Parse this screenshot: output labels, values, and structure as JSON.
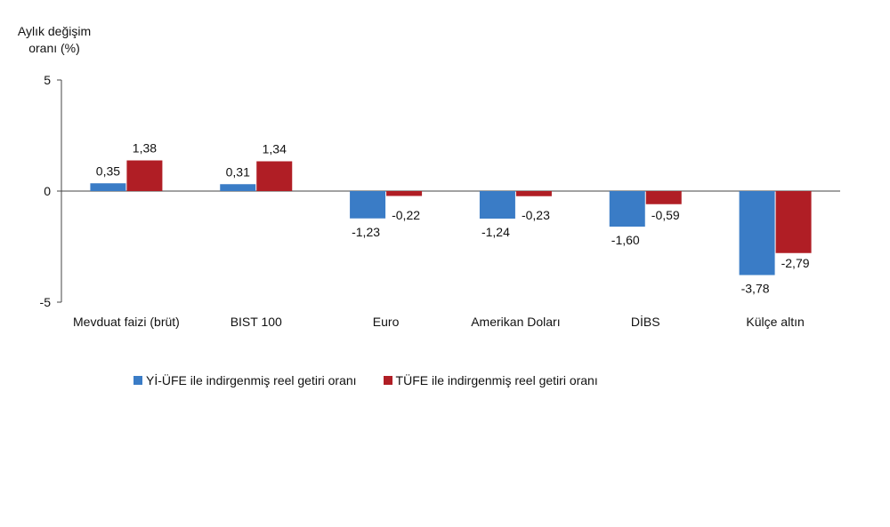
{
  "chart_data": {
    "type": "bar",
    "ylabel": [
      "Aylık değişim",
      "oranı (%)"
    ],
    "ylim": [
      -5,
      5
    ],
    "yticks": [
      5,
      0,
      -5
    ],
    "categories": [
      "Mevduat faizi (brüt)",
      "BIST 100",
      "Euro",
      "Amerikan Doları",
      "DİBS",
      "Külçe altın"
    ],
    "series": [
      {
        "name": "Yİ-ÜFE ile indirgenmiş reel getiri oranı",
        "color": "#3a7cc6",
        "values": [
          0.35,
          0.31,
          -1.23,
          -1.24,
          -1.6,
          -3.78
        ],
        "labels": [
          "0,35",
          "0,31",
          "-1,23",
          "-1,24",
          "-1,60",
          "-3,78"
        ]
      },
      {
        "name": "TÜFE ile indirgenmiş reel getiri oranı",
        "color": "#b01e25",
        "values": [
          1.38,
          1.34,
          -0.22,
          -0.23,
          -0.59,
          -2.79
        ],
        "labels": [
          "1,38",
          "1,34",
          "-0,22",
          "-0,23",
          "-0,59",
          "-2,79"
        ]
      }
    ],
    "grid": false,
    "legend_position": "bottom"
  }
}
